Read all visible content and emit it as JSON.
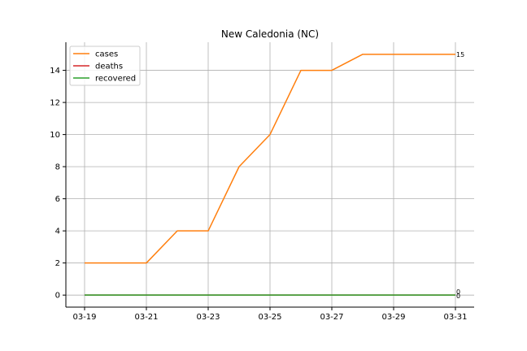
{
  "chart_data": {
    "type": "line",
    "title": "New Caledonia (NC)",
    "x": [
      "03-19",
      "03-20",
      "03-21",
      "03-22",
      "03-23",
      "03-24",
      "03-25",
      "03-26",
      "03-27",
      "03-28",
      "03-29",
      "03-30",
      "03-31"
    ],
    "x_tick_labels": [
      "03-19",
      "03-21",
      "03-23",
      "03-25",
      "03-27",
      "03-29",
      "03-31"
    ],
    "y_ticks": [
      0,
      2,
      4,
      6,
      8,
      10,
      12,
      14
    ],
    "ylim": [
      -0.75,
      15.75
    ],
    "grid": true,
    "legend_position": "top-left",
    "series": [
      {
        "name": "cases",
        "color": "#ff7f0e",
        "values": [
          2,
          2,
          2,
          4,
          4,
          8,
          10,
          14,
          14,
          15,
          15,
          15,
          15
        ],
        "end_label": "15"
      },
      {
        "name": "deaths",
        "color": "#d62728",
        "values": [
          0,
          0,
          0,
          0,
          0,
          0,
          0,
          0,
          0,
          0,
          0,
          0,
          0
        ],
        "end_label": "0"
      },
      {
        "name": "recovered",
        "color": "#2ca02c",
        "values": [
          0,
          0,
          0,
          0,
          0,
          0,
          0,
          0,
          0,
          0,
          0,
          0,
          0
        ],
        "end_label": "0"
      }
    ]
  }
}
